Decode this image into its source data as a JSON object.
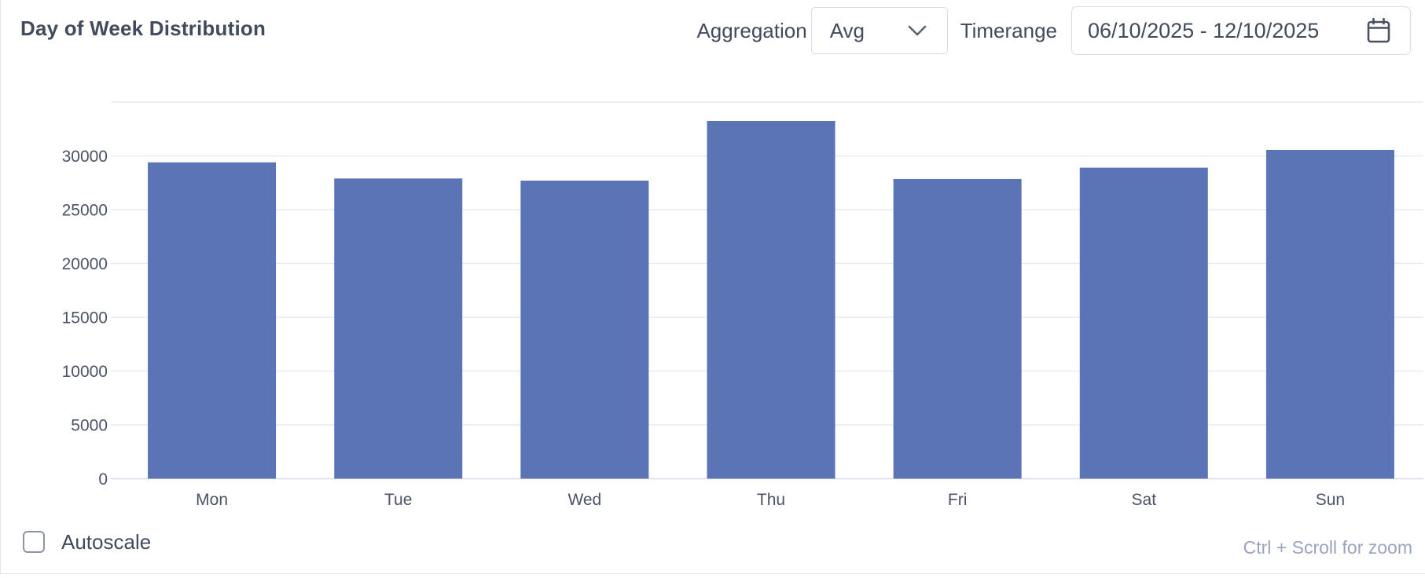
{
  "header": {
    "title": "Day of Week Distribution",
    "aggregation_label": "Aggregation",
    "aggregation_value": "Avg",
    "timerange_label": "Timerange",
    "timerange_value": "06/10/2025 - 12/10/2025"
  },
  "chart_data": {
    "type": "bar",
    "title": "Day of Week Distribution",
    "categories": [
      "Mon",
      "Tue",
      "Wed",
      "Thu",
      "Fri",
      "Sat",
      "Sun"
    ],
    "values": [
      29400,
      27900,
      27700,
      33250,
      27850,
      28900,
      30550
    ],
    "xlabel": "",
    "ylabel": "",
    "ylim": [
      0,
      35000
    ],
    "y_ticks": [
      0,
      5000,
      10000,
      15000,
      20000,
      25000,
      30000
    ],
    "grid": true,
    "legend": "none",
    "bar_color": "#5b74b6",
    "grid_color": "#e7eaf5",
    "zero_line_color": "#d9dded",
    "axis_text_color": "#4c5366"
  },
  "footer": {
    "autoscale_label": "Autoscale",
    "autoscale_checked": false,
    "zoom_hint": "Ctrl + Scroll for zoom"
  },
  "icons": {
    "aggregation_dropdown": "chevron-down-icon",
    "timerange_picker": "calendar-icon"
  },
  "colors": {
    "title_text": "#424b5c",
    "control_border": "#d8dbe2",
    "checkbox_border": "#8e95a2",
    "hint_text": "#9aa3bf",
    "panel_border": "#e3e5ea"
  }
}
